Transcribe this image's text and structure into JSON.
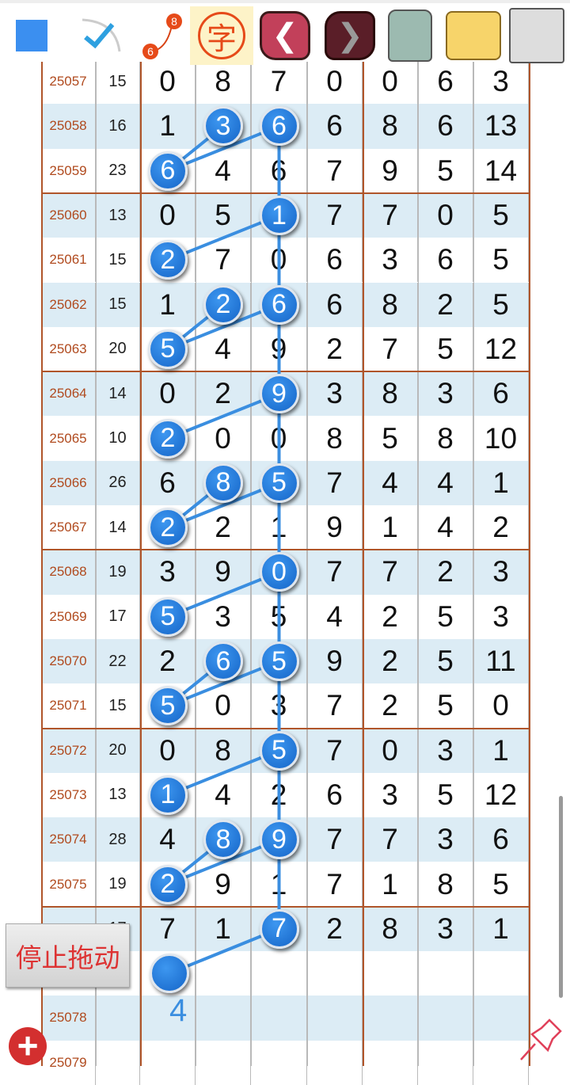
{
  "toolbar": {
    "items": [
      {
        "name": "blue-square-icon"
      },
      {
        "name": "checkmark-icon"
      },
      {
        "name": "connect-numbers-icon",
        "a": "8",
        "b": "6"
      },
      {
        "name": "char-icon",
        "label": "字"
      },
      {
        "name": "back-arrow-icon"
      },
      {
        "name": "forward-arrow-icon"
      },
      {
        "name": "trash-icon"
      },
      {
        "name": "photos-folder-icon"
      },
      {
        "name": "save-disk-icon"
      }
    ]
  },
  "colors": {
    "ball": "#1e7be0",
    "period": "#b04a1e",
    "shade": "#dcecf5",
    "divider": "#b0552a"
  },
  "rows": [
    {
      "period": "25057",
      "sum": "15",
      "digits": [
        "0",
        "8",
        "7",
        "0",
        "0",
        "6",
        "3"
      ]
    },
    {
      "period": "25058",
      "sum": "16",
      "digits": [
        "1",
        "3",
        "6",
        "6",
        "8",
        "6",
        "13"
      ],
      "balls": [
        1,
        2
      ]
    },
    {
      "period": "25059",
      "sum": "23",
      "digits": [
        "6",
        "4",
        "6",
        "7",
        "9",
        "5",
        "14"
      ],
      "balls": [
        0
      ]
    },
    {
      "period": "25060",
      "sum": "13",
      "digits": [
        "0",
        "5",
        "1",
        "7",
        "7",
        "0",
        "5"
      ],
      "balls": [
        2
      ]
    },
    {
      "period": "25061",
      "sum": "15",
      "digits": [
        "2",
        "7",
        "0",
        "6",
        "3",
        "6",
        "5"
      ],
      "balls": [
        0
      ]
    },
    {
      "period": "25062",
      "sum": "15",
      "digits": [
        "1",
        "2",
        "6",
        "6",
        "8",
        "2",
        "5"
      ],
      "balls": [
        1,
        2
      ]
    },
    {
      "period": "25063",
      "sum": "20",
      "digits": [
        "5",
        "4",
        "9",
        "2",
        "7",
        "5",
        "12"
      ],
      "balls": [
        0
      ]
    },
    {
      "period": "25064",
      "sum": "14",
      "digits": [
        "0",
        "2",
        "9",
        "3",
        "8",
        "3",
        "6"
      ],
      "balls": [
        2
      ]
    },
    {
      "period": "25065",
      "sum": "10",
      "digits": [
        "2",
        "0",
        "0",
        "8",
        "5",
        "8",
        "10"
      ],
      "balls": [
        0
      ]
    },
    {
      "period": "25066",
      "sum": "26",
      "digits": [
        "6",
        "8",
        "5",
        "7",
        "4",
        "4",
        "1"
      ],
      "balls": [
        1,
        2
      ]
    },
    {
      "period": "25067",
      "sum": "14",
      "digits": [
        "2",
        "2",
        "1",
        "9",
        "1",
        "4",
        "2"
      ],
      "balls": [
        0
      ]
    },
    {
      "period": "25068",
      "sum": "19",
      "digits": [
        "3",
        "9",
        "0",
        "7",
        "7",
        "2",
        "3"
      ],
      "balls": [
        2
      ]
    },
    {
      "period": "25069",
      "sum": "17",
      "digits": [
        "5",
        "3",
        "5",
        "4",
        "2",
        "5",
        "3"
      ],
      "balls": [
        0
      ]
    },
    {
      "period": "25070",
      "sum": "22",
      "digits": [
        "2",
        "6",
        "5",
        "9",
        "2",
        "5",
        "11"
      ],
      "balls": [
        1,
        2
      ]
    },
    {
      "period": "25071",
      "sum": "15",
      "digits": [
        "5",
        "0",
        "3",
        "7",
        "2",
        "5",
        "0"
      ],
      "balls": [
        0
      ]
    },
    {
      "period": "25072",
      "sum": "20",
      "digits": [
        "0",
        "8",
        "5",
        "7",
        "0",
        "3",
        "1"
      ],
      "balls": [
        2
      ]
    },
    {
      "period": "25073",
      "sum": "13",
      "digits": [
        "1",
        "4",
        "2",
        "6",
        "3",
        "5",
        "12"
      ],
      "balls": [
        0
      ]
    },
    {
      "period": "25074",
      "sum": "28",
      "digits": [
        "4",
        "8",
        "9",
        "7",
        "7",
        "3",
        "6"
      ],
      "balls": [
        1,
        2
      ]
    },
    {
      "period": "25075",
      "sum": "19",
      "digits": [
        "2",
        "9",
        "1",
        "7",
        "1",
        "8",
        "5"
      ],
      "balls": [
        0
      ]
    },
    {
      "period": "",
      "sum": "17",
      "digits": [
        "7",
        "1",
        "7",
        "2",
        "8",
        "3",
        "1"
      ],
      "balls": [
        2
      ]
    },
    {
      "period": "",
      "sum": "",
      "digits": [
        "",
        "",
        "",
        "",
        "",
        "",
        ""
      ]
    },
    {
      "period": "25078",
      "sum": "",
      "digits": [
        "",
        "",
        "",
        "",
        "",
        "",
        ""
      ]
    },
    {
      "period": "25079",
      "sum": "",
      "digits": [
        "",
        "",
        "",
        "",
        "",
        "",
        ""
      ]
    }
  ],
  "prediction": {
    "value": "4"
  },
  "stop_drag_button": "停止拖动"
}
